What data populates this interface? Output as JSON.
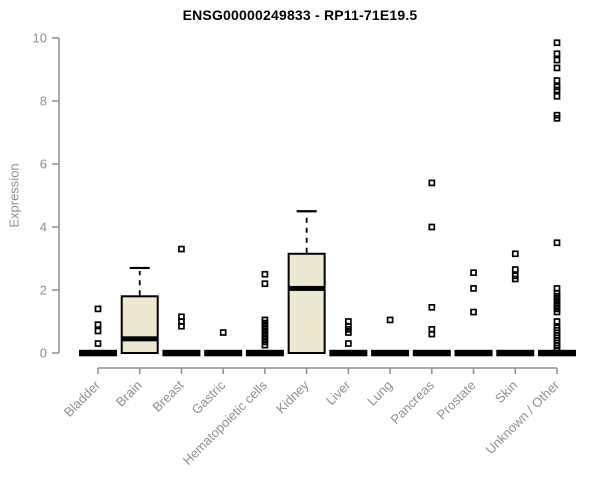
{
  "chart_data": {
    "type": "boxplot",
    "title": "ENSG00000249833 - RP11-71E19.5",
    "ylabel": "Expression",
    "xlabel": "",
    "ylim": [
      0,
      10
    ],
    "yticks": [
      0,
      2,
      4,
      6,
      8,
      10
    ],
    "grid": false,
    "legend": "none",
    "categories": [
      "Bladder",
      "Brain",
      "Breast",
      "Gastric",
      "Hematopoietic cells",
      "Kidney",
      "Liver",
      "Lung",
      "Pancreas",
      "Prostate",
      "Skin",
      "Unknown / Other"
    ],
    "series": [
      {
        "category": "Bladder",
        "q1": 0,
        "median": 0,
        "q3": 0,
        "whisker_low": 0,
        "whisker_high": 0,
        "outliers": [
          1.4,
          0.9,
          0.7,
          0.3
        ]
      },
      {
        "category": "Brain",
        "q1": 0,
        "median": 0.45,
        "q3": 1.8,
        "whisker_low": 0,
        "whisker_high": 2.7,
        "outliers": []
      },
      {
        "category": "Breast",
        "q1": 0,
        "median": 0,
        "q3": 0,
        "whisker_low": 0,
        "whisker_high": 0,
        "outliers": [
          3.3,
          1.15,
          1.0,
          0.85
        ]
      },
      {
        "category": "Gastric",
        "q1": 0,
        "median": 0,
        "q3": 0,
        "whisker_low": 0,
        "whisker_high": 0,
        "outliers": [
          0.65
        ]
      },
      {
        "category": "Hematopoietic cells",
        "q1": 0,
        "median": 0,
        "q3": 0,
        "whisker_low": 0,
        "whisker_high": 0,
        "outliers": [
          2.5,
          2.2,
          1.05,
          0.95,
          0.85,
          0.75,
          0.65,
          0.55,
          0.45,
          0.35,
          0.25
        ]
      },
      {
        "category": "Kidney",
        "q1": 0,
        "median": 2.05,
        "q3": 3.15,
        "whisker_low": 0,
        "whisker_high": 4.5,
        "outliers": []
      },
      {
        "category": "Liver",
        "q1": 0,
        "median": 0,
        "q3": 0,
        "whisker_low": 0,
        "whisker_high": 0,
        "outliers": [
          1.0,
          0.85,
          0.75,
          0.65,
          0.3
        ]
      },
      {
        "category": "Lung",
        "q1": 0,
        "median": 0,
        "q3": 0,
        "whisker_low": 0,
        "whisker_high": 0,
        "outliers": [
          1.05
        ]
      },
      {
        "category": "Pancreas",
        "q1": 0,
        "median": 0,
        "q3": 0,
        "whisker_low": 0,
        "whisker_high": 0,
        "outliers": [
          5.4,
          4.0,
          1.45,
          0.75,
          0.6
        ]
      },
      {
        "category": "Prostate",
        "q1": 0,
        "median": 0,
        "q3": 0,
        "whisker_low": 0,
        "whisker_high": 0,
        "outliers": [
          2.55,
          2.05,
          1.3
        ]
      },
      {
        "category": "Skin",
        "q1": 0,
        "median": 0,
        "q3": 0,
        "whisker_low": 0,
        "whisker_high": 0,
        "outliers": [
          3.15,
          2.65,
          2.45,
          2.35
        ]
      },
      {
        "category": "Unknown / Other",
        "q1": 0,
        "median": 0,
        "q3": 0,
        "whisker_low": 0,
        "whisker_high": 0,
        "outliers": [
          9.85,
          9.5,
          9.3,
          9.05,
          8.65,
          8.45,
          8.35,
          8.15,
          7.55,
          7.45,
          3.5,
          2.05,
          1.9,
          1.8,
          1.7,
          1.6,
          1.5,
          1.4,
          1.3,
          1.0,
          0.8,
          0.72,
          0.64,
          0.56,
          0.48,
          0.4,
          0.32,
          0.24,
          0.16,
          0.08
        ]
      }
    ],
    "colors": {
      "box_fill": "#EDE8D0",
      "box_line": "#000000",
      "median": "#000000",
      "outlier": "#000000",
      "axis": "#8f8f8f",
      "title": "#000000",
      "background": "#ffffff"
    }
  }
}
